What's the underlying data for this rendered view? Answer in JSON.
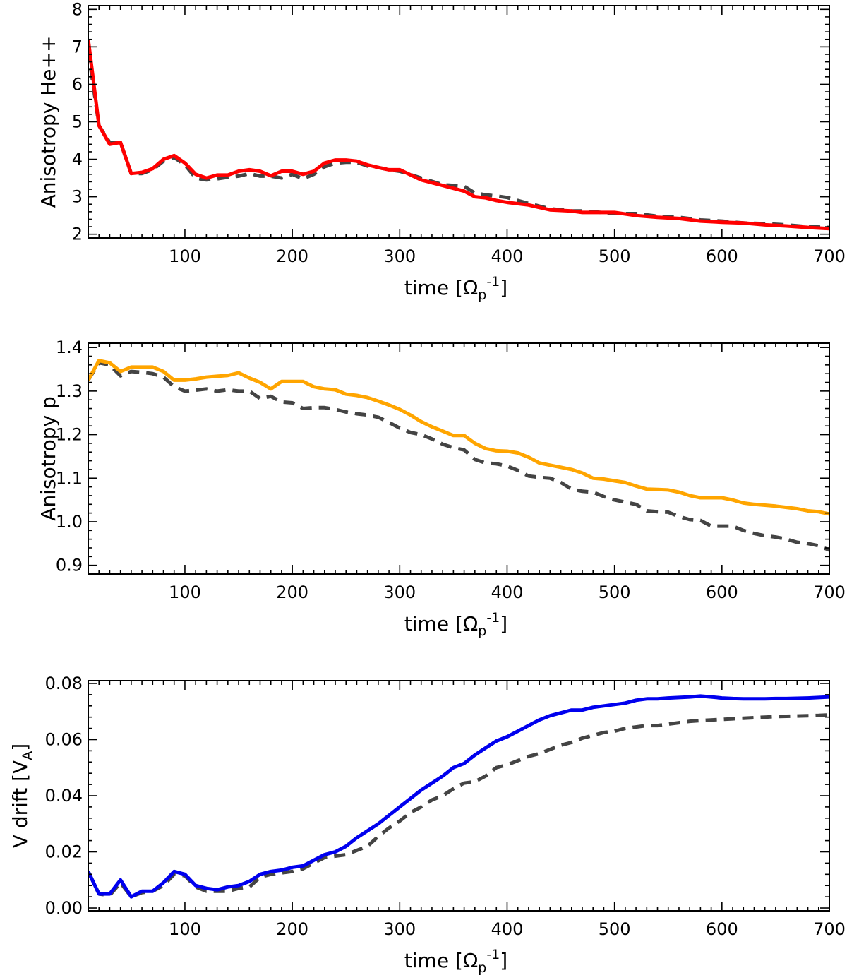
{
  "chart_data": [
    {
      "type": "line",
      "xlabel": "time [Ω_p^-1]",
      "ylabel": "Anisotropy He++",
      "xlim": [
        10,
        700
      ],
      "ylim": [
        1.9,
        8.1
      ],
      "xticks": [
        100,
        200,
        300,
        400,
        500,
        600,
        700
      ],
      "yticks": [
        2,
        3,
        4,
        5,
        6,
        7,
        8
      ],
      "ytick_labels": [
        "2",
        "3",
        "4",
        "5",
        "6",
        "7",
        "8"
      ],
      "grid": false,
      "colors": {
        "primary": "#ff0000",
        "reference": "#444444"
      },
      "series": [
        {
          "style": "solid",
          "x": [
            10,
            20,
            30,
            40,
            50,
            60,
            70,
            80,
            90,
            100,
            110,
            120,
            130,
            140,
            150,
            160,
            170,
            180,
            190,
            200,
            210,
            220,
            230,
            240,
            250,
            260,
            270,
            280,
            290,
            300,
            320,
            340,
            360,
            370,
            380,
            390,
            400,
            420,
            440,
            460,
            470,
            480,
            500,
            520,
            540,
            560,
            580,
            600,
            620,
            640,
            660,
            680,
            700
          ],
          "y": [
            7.2,
            4.9,
            4.4,
            4.45,
            3.62,
            3.65,
            3.75,
            4.0,
            4.1,
            3.9,
            3.6,
            3.5,
            3.58,
            3.58,
            3.68,
            3.72,
            3.68,
            3.56,
            3.68,
            3.68,
            3.6,
            3.68,
            3.9,
            3.98,
            3.98,
            3.95,
            3.85,
            3.78,
            3.72,
            3.72,
            3.45,
            3.3,
            3.15,
            3.0,
            2.97,
            2.9,
            2.85,
            2.78,
            2.65,
            2.62,
            2.58,
            2.58,
            2.58,
            2.5,
            2.45,
            2.42,
            2.35,
            2.32,
            2.3,
            2.25,
            2.22,
            2.18,
            2.15
          ]
        },
        {
          "style": "dashed",
          "x": [
            10,
            20,
            30,
            40,
            50,
            60,
            70,
            80,
            90,
            100,
            110,
            120,
            130,
            140,
            150,
            160,
            170,
            180,
            190,
            200,
            210,
            220,
            230,
            240,
            250,
            260,
            270,
            280,
            290,
            300,
            320,
            340,
            360,
            370,
            380,
            390,
            400,
            420,
            440,
            460,
            470,
            480,
            500,
            520,
            540,
            560,
            580,
            600,
            620,
            640,
            660,
            680,
            700
          ],
          "y": [
            6.9,
            4.9,
            4.45,
            4.45,
            3.62,
            3.62,
            3.72,
            3.95,
            4.05,
            3.85,
            3.5,
            3.45,
            3.48,
            3.52,
            3.55,
            3.62,
            3.55,
            3.55,
            3.5,
            3.6,
            3.48,
            3.6,
            3.8,
            3.9,
            3.92,
            3.92,
            3.82,
            3.78,
            3.72,
            3.68,
            3.5,
            3.32,
            3.28,
            3.1,
            3.05,
            3.02,
            2.98,
            2.82,
            2.68,
            2.62,
            2.62,
            2.6,
            2.55,
            2.55,
            2.48,
            2.45,
            2.38,
            2.35,
            2.3,
            2.28,
            2.25,
            2.2,
            2.18
          ]
        }
      ]
    },
    {
      "type": "line",
      "xlabel": "time [Ω_p^-1]",
      "ylabel": "Anisotropy p",
      "xlim": [
        10,
        700
      ],
      "ylim": [
        0.88,
        1.41
      ],
      "xticks": [
        100,
        200,
        300,
        400,
        500,
        600,
        700
      ],
      "yticks": [
        0.9,
        1.0,
        1.1,
        1.2,
        1.3,
        1.4
      ],
      "ytick_labels": [
        "0.9",
        "1.0",
        "1.1",
        "1.2",
        "1.3",
        "1.4"
      ],
      "grid": false,
      "colors": {
        "primary": "#ffa500",
        "reference": "#444444"
      },
      "series": [
        {
          "style": "solid",
          "x": [
            10,
            20,
            30,
            40,
            50,
            60,
            70,
            80,
            90,
            100,
            110,
            120,
            130,
            140,
            150,
            160,
            170,
            180,
            190,
            200,
            210,
            220,
            230,
            240,
            250,
            260,
            270,
            280,
            290,
            300,
            310,
            320,
            330,
            340,
            350,
            360,
            370,
            380,
            390,
            400,
            410,
            420,
            430,
            440,
            450,
            460,
            470,
            480,
            490,
            500,
            510,
            520,
            530,
            540,
            550,
            560,
            570,
            580,
            590,
            600,
            610,
            620,
            630,
            640,
            650,
            660,
            670,
            680,
            690,
            700
          ],
          "y": [
            1.325,
            1.37,
            1.365,
            1.345,
            1.355,
            1.355,
            1.355,
            1.345,
            1.325,
            1.325,
            1.328,
            1.332,
            1.334,
            1.336,
            1.342,
            1.33,
            1.32,
            1.305,
            1.322,
            1.322,
            1.322,
            1.31,
            1.305,
            1.303,
            1.293,
            1.29,
            1.285,
            1.277,
            1.268,
            1.258,
            1.245,
            1.23,
            1.218,
            1.208,
            1.198,
            1.198,
            1.18,
            1.168,
            1.163,
            1.162,
            1.158,
            1.148,
            1.135,
            1.13,
            1.125,
            1.12,
            1.112,
            1.1,
            1.098,
            1.094,
            1.09,
            1.082,
            1.075,
            1.074,
            1.073,
            1.068,
            1.06,
            1.055,
            1.055,
            1.055,
            1.05,
            1.043,
            1.04,
            1.038,
            1.036,
            1.033,
            1.03,
            1.025,
            1.023,
            1.018
          ]
        },
        {
          "style": "dashed",
          "x": [
            10,
            20,
            30,
            40,
            50,
            60,
            70,
            80,
            90,
            100,
            110,
            120,
            130,
            140,
            150,
            160,
            170,
            180,
            190,
            200,
            210,
            220,
            230,
            240,
            250,
            260,
            270,
            280,
            290,
            300,
            310,
            320,
            330,
            340,
            350,
            360,
            370,
            380,
            390,
            400,
            410,
            420,
            430,
            440,
            450,
            460,
            470,
            480,
            490,
            500,
            510,
            520,
            530,
            540,
            550,
            560,
            570,
            580,
            590,
            600,
            610,
            620,
            630,
            640,
            650,
            660,
            670,
            680,
            690,
            700
          ],
          "y": [
            1.325,
            1.365,
            1.36,
            1.335,
            1.345,
            1.343,
            1.34,
            1.332,
            1.31,
            1.3,
            1.302,
            1.305,
            1.3,
            1.303,
            1.3,
            1.3,
            1.283,
            1.288,
            1.275,
            1.273,
            1.26,
            1.262,
            1.262,
            1.258,
            1.252,
            1.248,
            1.245,
            1.24,
            1.228,
            1.215,
            1.205,
            1.2,
            1.19,
            1.178,
            1.17,
            1.165,
            1.143,
            1.135,
            1.133,
            1.128,
            1.118,
            1.105,
            1.102,
            1.1,
            1.09,
            1.075,
            1.07,
            1.068,
            1.058,
            1.05,
            1.045,
            1.04,
            1.025,
            1.023,
            1.022,
            1.012,
            1.005,
            1.003,
            0.99,
            0.99,
            0.99,
            0.98,
            0.973,
            0.968,
            0.965,
            0.96,
            0.953,
            0.95,
            0.945,
            0.935
          ]
        }
      ]
    },
    {
      "type": "line",
      "xlabel": "time [Ω_p^-1]",
      "ylabel": "V drift [V_A]",
      "xlim": [
        10,
        700
      ],
      "ylim": [
        -0.001,
        0.081
      ],
      "xticks": [
        100,
        200,
        300,
        400,
        500,
        600,
        700
      ],
      "yticks": [
        0.0,
        0.02,
        0.04,
        0.06,
        0.08
      ],
      "ytick_labels": [
        "0.00",
        "0.02",
        "0.04",
        "0.06",
        "0.08"
      ],
      "grid": false,
      "colors": {
        "primary": "#0000ee",
        "reference": "#444444"
      },
      "series": [
        {
          "style": "solid",
          "x": [
            10,
            20,
            30,
            40,
            50,
            60,
            70,
            80,
            90,
            100,
            110,
            120,
            130,
            140,
            150,
            160,
            170,
            180,
            190,
            200,
            210,
            220,
            230,
            240,
            250,
            260,
            270,
            280,
            290,
            300,
            310,
            320,
            330,
            340,
            350,
            360,
            370,
            380,
            390,
            400,
            410,
            420,
            430,
            440,
            450,
            460,
            470,
            480,
            490,
            500,
            510,
            520,
            530,
            540,
            550,
            560,
            570,
            580,
            590,
            600,
            610,
            620,
            630,
            640,
            650,
            660,
            670,
            680,
            690,
            700
          ],
          "y": [
            0.013,
            0.005,
            0.005,
            0.01,
            0.004,
            0.006,
            0.006,
            0.009,
            0.013,
            0.012,
            0.008,
            0.007,
            0.0065,
            0.0075,
            0.008,
            0.0095,
            0.012,
            0.013,
            0.0135,
            0.0145,
            0.015,
            0.017,
            0.019,
            0.02,
            0.022,
            0.025,
            0.0275,
            0.03,
            0.033,
            0.036,
            0.039,
            0.042,
            0.0445,
            0.047,
            0.05,
            0.0515,
            0.0545,
            0.057,
            0.0595,
            0.061,
            0.063,
            0.065,
            0.067,
            0.0685,
            0.0695,
            0.0705,
            0.0705,
            0.0715,
            0.072,
            0.0725,
            0.073,
            0.074,
            0.0745,
            0.0745,
            0.0748,
            0.075,
            0.0752,
            0.0755,
            0.0752,
            0.0748,
            0.0746,
            0.0745,
            0.0745,
            0.0745,
            0.0746,
            0.0746,
            0.0747,
            0.0748,
            0.075,
            0.0752
          ]
        },
        {
          "style": "dashed",
          "x": [
            10,
            20,
            30,
            40,
            50,
            60,
            70,
            80,
            90,
            100,
            110,
            120,
            130,
            140,
            150,
            160,
            170,
            180,
            190,
            200,
            210,
            220,
            230,
            240,
            250,
            260,
            270,
            280,
            290,
            300,
            310,
            320,
            330,
            340,
            350,
            360,
            370,
            380,
            390,
            400,
            410,
            420,
            430,
            440,
            450,
            460,
            470,
            480,
            490,
            500,
            510,
            520,
            530,
            540,
            550,
            560,
            570,
            580,
            590,
            600,
            610,
            620,
            630,
            640,
            650,
            660,
            670,
            680,
            690,
            700
          ],
          "y": [
            0.013,
            0.005,
            0.0045,
            0.009,
            0.004,
            0.0055,
            0.006,
            0.008,
            0.012,
            0.0115,
            0.0075,
            0.006,
            0.006,
            0.006,
            0.007,
            0.0075,
            0.011,
            0.012,
            0.0125,
            0.013,
            0.014,
            0.016,
            0.018,
            0.0185,
            0.019,
            0.0205,
            0.022,
            0.0255,
            0.0285,
            0.031,
            0.034,
            0.036,
            0.0385,
            0.04,
            0.0425,
            0.0445,
            0.045,
            0.047,
            0.05,
            0.051,
            0.0525,
            0.054,
            0.055,
            0.0565,
            0.058,
            0.059,
            0.0605,
            0.0615,
            0.0625,
            0.063,
            0.064,
            0.0645,
            0.065,
            0.065,
            0.0655,
            0.066,
            0.0665,
            0.0668,
            0.067,
            0.0672,
            0.0674,
            0.0676,
            0.0678,
            0.068,
            0.0682,
            0.0683,
            0.0684,
            0.0685,
            0.0686,
            0.0688
          ]
        }
      ]
    }
  ]
}
